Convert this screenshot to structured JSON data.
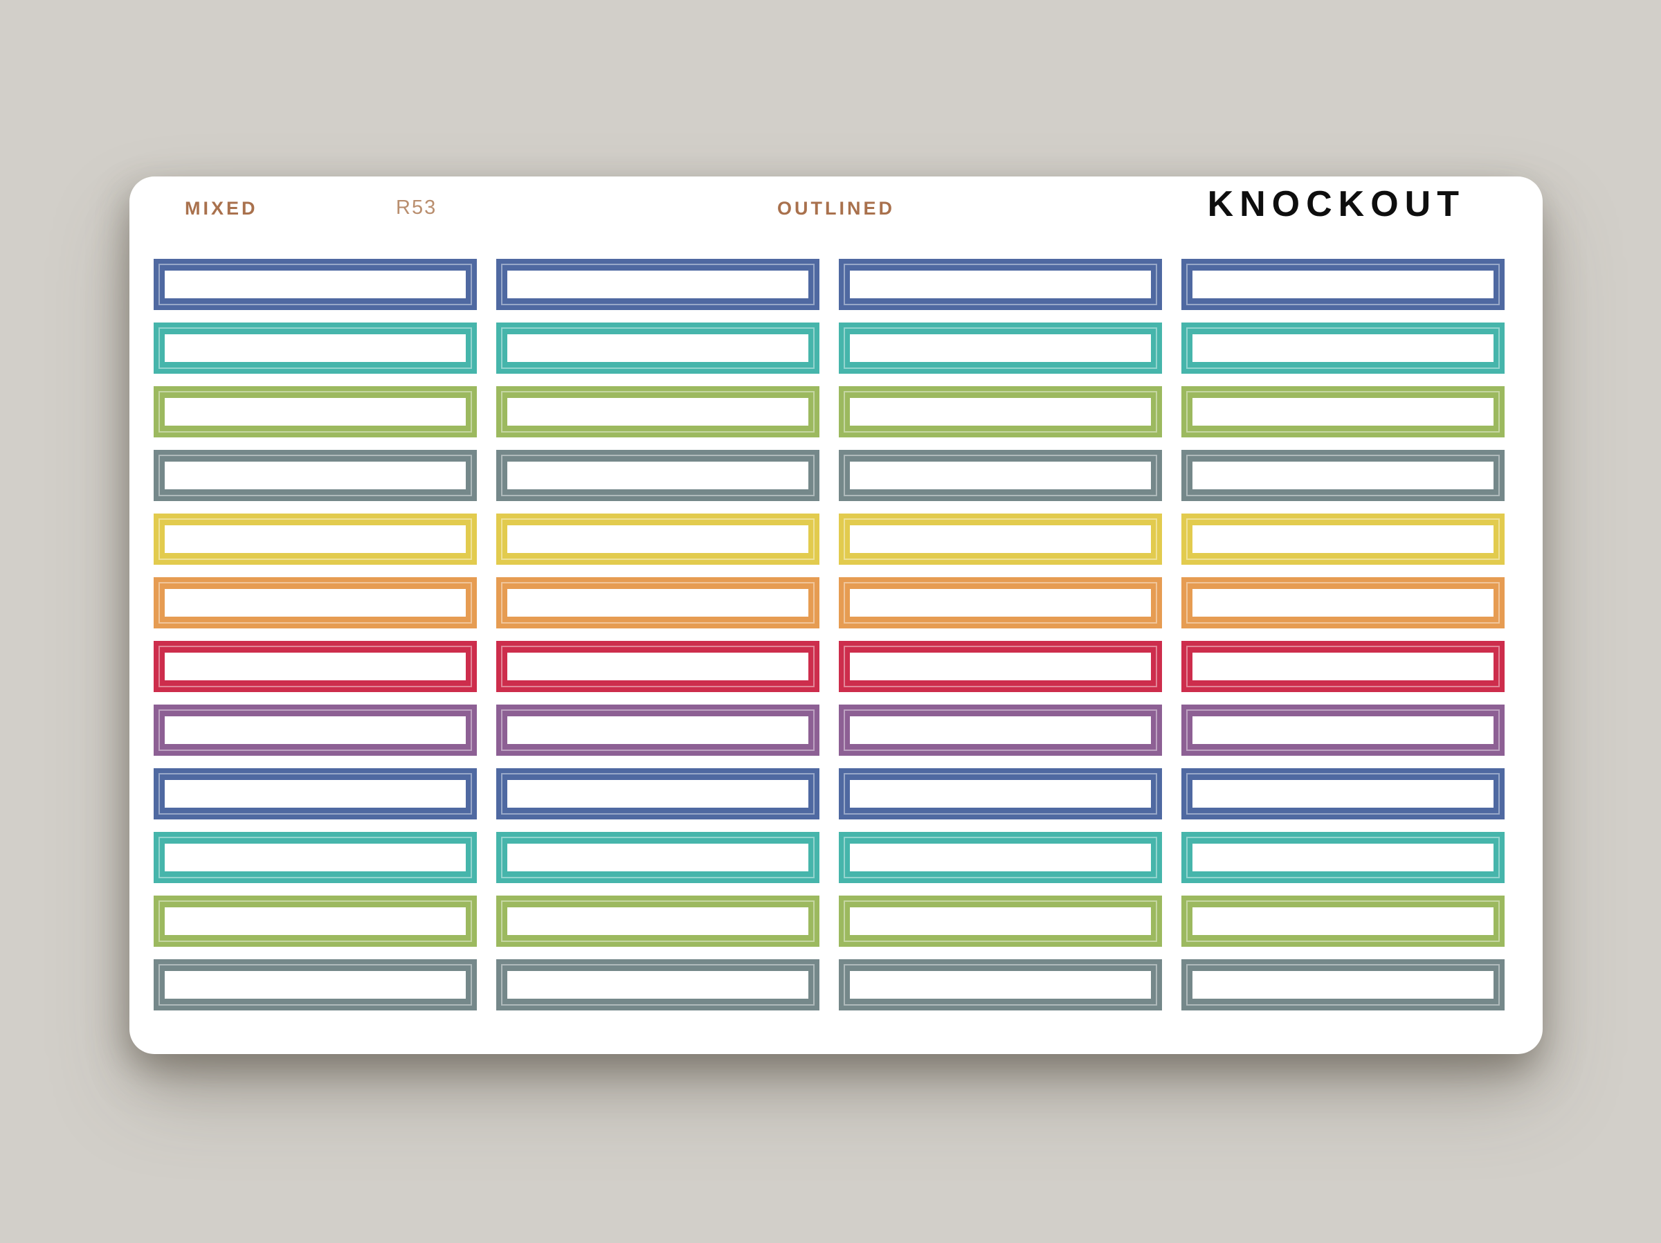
{
  "page": {
    "background_color": "#d2cfc9"
  },
  "sheet": {
    "background_color": "#ffffff",
    "header": {
      "collection": "MIXED",
      "sku": "R53",
      "style": "OUTLINED",
      "brand": "KNOCKOUT",
      "label_color": "#a9714d",
      "sku_color": "#b98e6e",
      "brand_color": "#0e0e0e"
    },
    "grid": {
      "rows": 12,
      "columns": 4
    },
    "row_colors": [
      "blue",
      "teal",
      "green",
      "slate",
      "yellow",
      "orange",
      "red",
      "purple",
      "blue",
      "teal",
      "green",
      "slate"
    ],
    "palette": {
      "blue": "#4f69a1",
      "teal": "#46b5ab",
      "green": "#9cb95f",
      "slate": "#75888a",
      "yellow": "#e2cb4e",
      "orange": "#e69c52",
      "red": "#cd2d4c",
      "purple": "#8d6094"
    },
    "sticker_shape": "outlined-rectangle",
    "cut_line_color": "rgba(255,255,255,0.42)"
  }
}
